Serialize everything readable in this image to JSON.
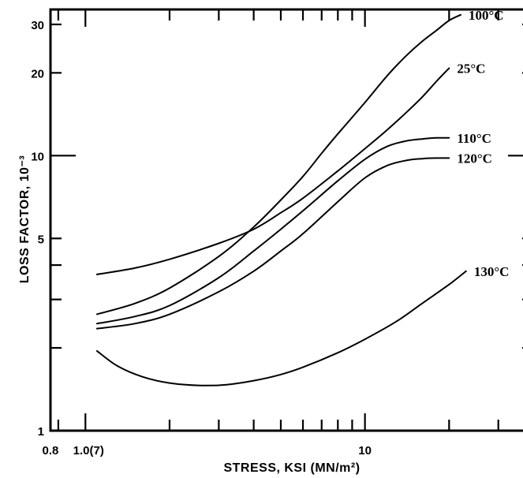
{
  "chart_data": {
    "type": "line",
    "xscale": "log",
    "yscale": "log",
    "xlabel": "STRESS, KSI (MN/m²)",
    "ylabel": "LOSS FACTOR, 10⁻³",
    "xlim": [
      0.75,
      40
    ],
    "ylim": [
      1,
      34
    ],
    "x_tick_labels": [
      {
        "value": 0.8,
        "label": "0.8"
      },
      {
        "value": 1.0,
        "label": "1.0(7)"
      },
      {
        "value": 10,
        "label": "10"
      }
    ],
    "y_tick_labels": [
      {
        "value": 1,
        "label": "1"
      },
      {
        "value": 5,
        "label": "5"
      },
      {
        "value": 10,
        "label": "10"
      },
      {
        "value": 20,
        "label": "20"
      },
      {
        "value": 30,
        "label": "30"
      }
    ],
    "series": [
      {
        "name": "100°C",
        "x": [
          1.1,
          1.5,
          2.0,
          3.0,
          4.0,
          5.0,
          6.0,
          7.0,
          8.0,
          10.0,
          12.0,
          14.0,
          16.0,
          18.0,
          20.0,
          22.0
        ],
        "y": [
          2.65,
          2.9,
          3.3,
          4.3,
          5.5,
          6.9,
          8.4,
          10.2,
          12.0,
          15.6,
          19.5,
          23.0,
          26.0,
          28.5,
          31.0,
          32.5
        ]
      },
      {
        "name": "25°C",
        "x": [
          1.1,
          1.5,
          2.0,
          3.0,
          4.0,
          5.0,
          6.0,
          8.0,
          10.0,
          12.0,
          14.0,
          16.0,
          18.0,
          20.0
        ],
        "y": [
          3.7,
          3.9,
          4.2,
          4.8,
          5.4,
          6.2,
          7.0,
          8.8,
          10.6,
          12.4,
          14.3,
          16.3,
          18.6,
          20.8
        ]
      },
      {
        "name": "110°C",
        "x": [
          1.1,
          1.5,
          2.0,
          3.0,
          4.0,
          5.0,
          6.0,
          8.0,
          10.0,
          12.0,
          14.0,
          16.0,
          18.0,
          20.0
        ],
        "y": [
          2.45,
          2.6,
          2.85,
          3.6,
          4.5,
          5.4,
          6.3,
          8.1,
          9.7,
          10.8,
          11.3,
          11.5,
          11.6,
          11.6
        ]
      },
      {
        "name": "120°C",
        "x": [
          1.1,
          1.5,
          2.0,
          3.0,
          4.0,
          5.0,
          6.0,
          8.0,
          10.0,
          12.0,
          14.0,
          16.0,
          18.0,
          20.0
        ],
        "y": [
          2.35,
          2.45,
          2.65,
          3.2,
          3.8,
          4.5,
          5.2,
          6.8,
          8.3,
          9.2,
          9.6,
          9.75,
          9.8,
          9.8
        ]
      },
      {
        "name": "130°C",
        "x": [
          1.1,
          1.3,
          1.6,
          2.0,
          2.6,
          3.2,
          4.0,
          5.0,
          6.0,
          8.0,
          10.0,
          13.0,
          16.0,
          20.0,
          23.0
        ],
        "y": [
          1.95,
          1.72,
          1.57,
          1.49,
          1.46,
          1.47,
          1.52,
          1.6,
          1.7,
          1.92,
          2.15,
          2.5,
          2.9,
          3.4,
          3.8
        ]
      }
    ],
    "grid": false,
    "legend": "inline labels at right end of curves"
  }
}
